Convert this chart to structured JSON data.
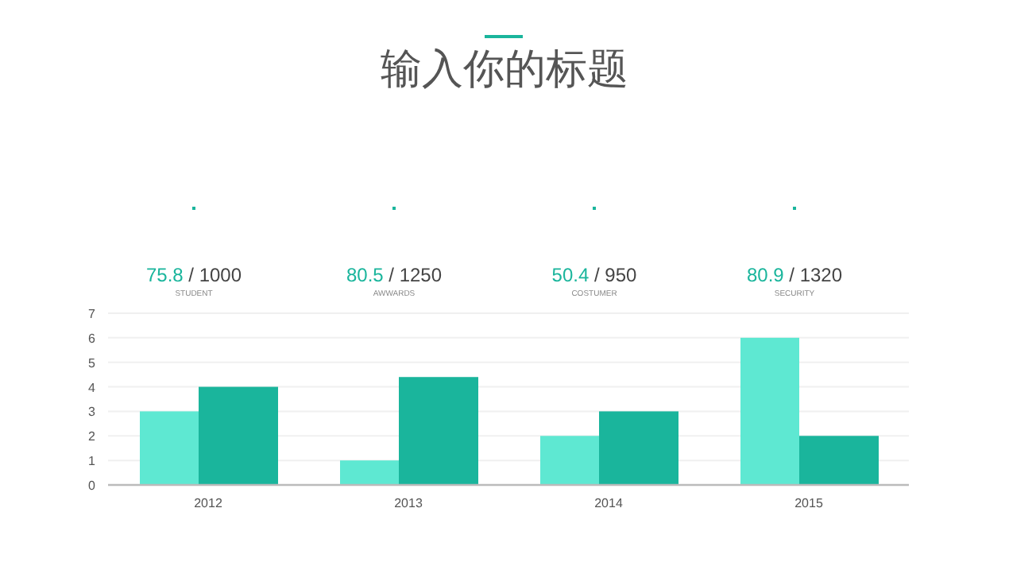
{
  "chart_data": {
    "type": "bar",
    "title": "输入你的标题",
    "categories": [
      "2012",
      "2013",
      "2014",
      "2015"
    ],
    "series": [
      {
        "color": "#5ee8d2",
        "values": [
          3,
          1,
          2,
          6
        ]
      },
      {
        "color": "#1ab59c",
        "values": [
          4,
          4.4,
          3,
          2
        ]
      }
    ],
    "ylim": [
      0,
      7
    ],
    "yticks": [
      0,
      1,
      2,
      3,
      4,
      5,
      6,
      7
    ],
    "grid": "y",
    "annotations": [
      "75.8 / 1000",
      "STUDENT",
      "80.5 / 1250",
      "AWWARDS",
      "50.4 / 950",
      "COSTUMER",
      "80.9 / 1320",
      "SECURITY"
    ]
  }
}
